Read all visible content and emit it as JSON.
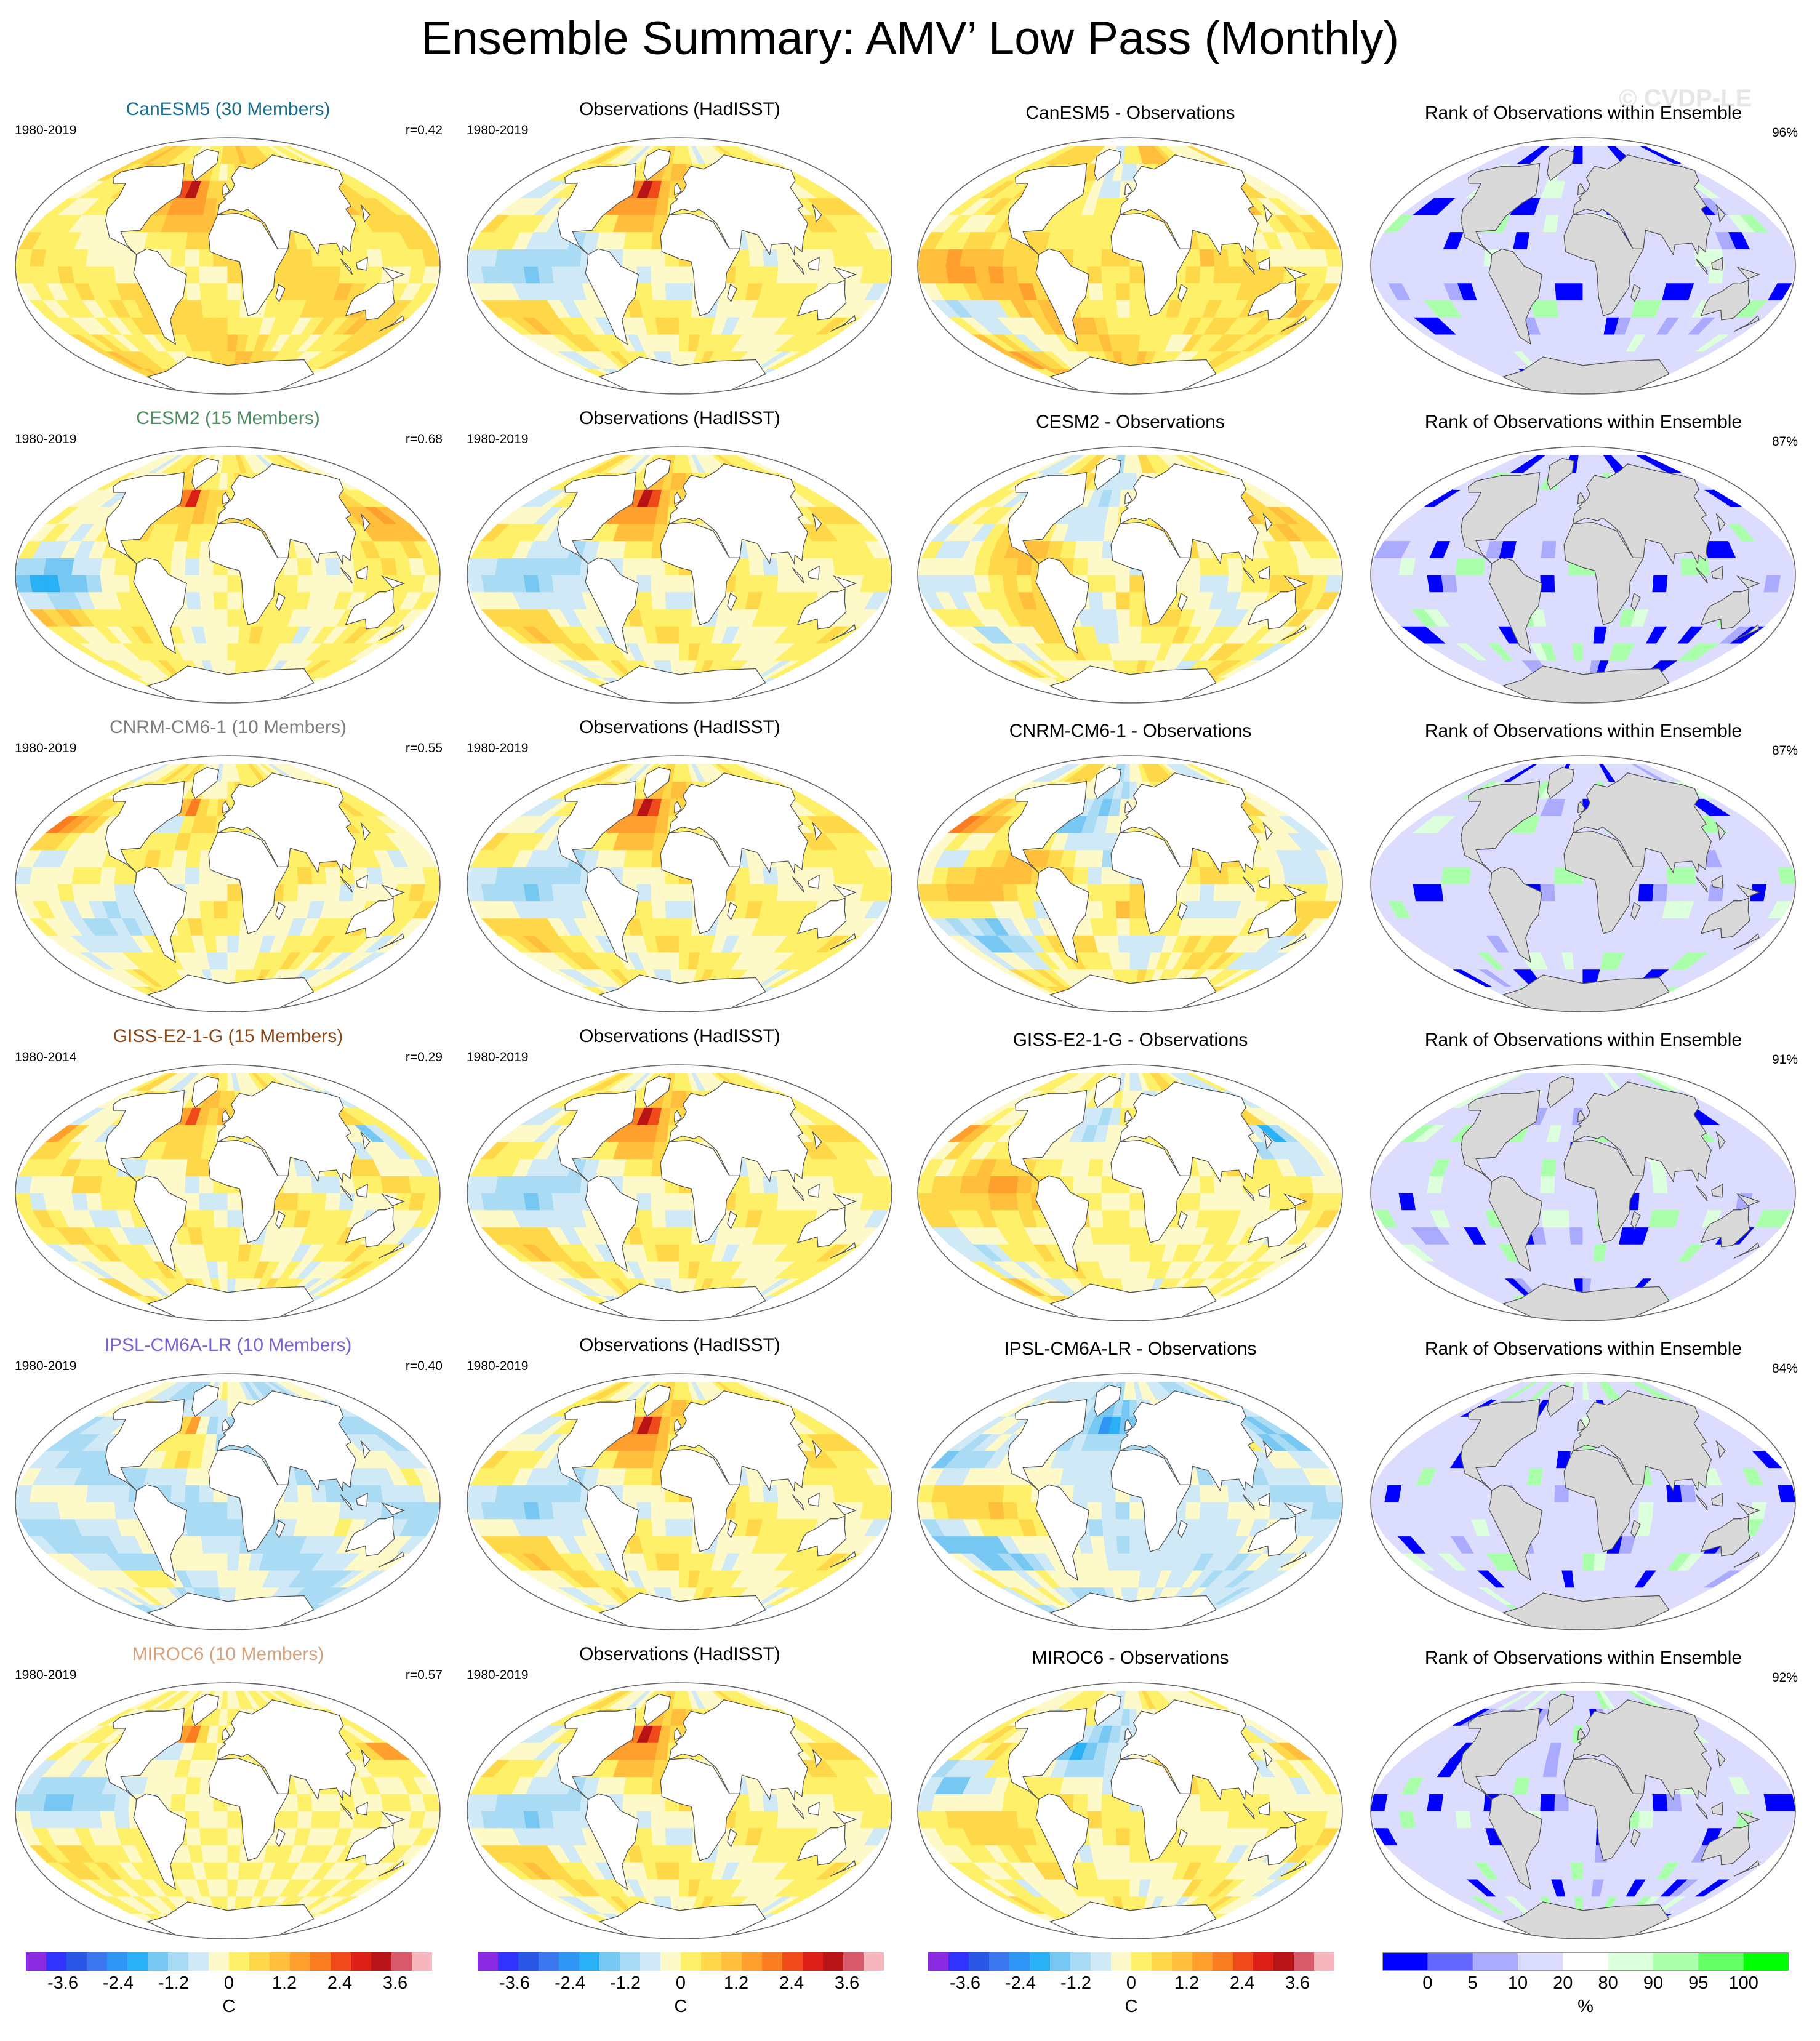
{
  "figure": {
    "title": "Ensemble Summary: AMV’ Low Pass (Monthly)",
    "watermark": "© CVDP-LE"
  },
  "chart_data": {
    "type": "heatmap",
    "projection": "global ocean maps, Robinson-like projection",
    "rows": [
      {
        "model": "CanESM5",
        "model_title": "CanESM5 (30 Members)",
        "model_color": "#1a6f8e",
        "model_period": "1980-2019",
        "r": "r=0.42",
        "obs_title": "Observations (HadISST)",
        "obs_period": "1980-2019",
        "diff_title": "CanESM5 - Observations",
        "rank_title": "Rank of Observations within Ensemble",
        "rank_pct": "96%"
      },
      {
        "model": "CESM2",
        "model_title": "CESM2 (15 Members)",
        "model_color": "#4e8e63",
        "model_period": "1980-2019",
        "r": "r=0.68",
        "obs_title": "Observations (HadISST)",
        "obs_period": "1980-2019",
        "diff_title": "CESM2 - Observations",
        "rank_title": "Rank of Observations within Ensemble",
        "rank_pct": "87%"
      },
      {
        "model": "CNRM-CM6-1",
        "model_title": "CNRM-CM6-1 (10 Members)",
        "model_color": "#7d7d7d",
        "model_period": "1980-2019",
        "r": "r=0.55",
        "obs_title": "Observations (HadISST)",
        "obs_period": "1980-2019",
        "diff_title": "CNRM-CM6-1 - Observations",
        "rank_title": "Rank of Observations within Ensemble",
        "rank_pct": "87%"
      },
      {
        "model": "GISS-E2-1-G",
        "model_title": "GISS-E2-1-G (15 Members)",
        "model_color": "#8a4a1c",
        "model_period": "1980-2014",
        "r": "r=0.29",
        "obs_title": "Observations (HadISST)",
        "obs_period": "1980-2019",
        "diff_title": "GISS-E2-1-G - Observations",
        "rank_title": "Rank of Observations within Ensemble",
        "rank_pct": "91%"
      },
      {
        "model": "IPSL-CM6A-LR",
        "model_title": "IPSL-CM6A-LR (10 Members)",
        "model_color": "#7b62cf",
        "model_period": "1980-2019",
        "r": "r=0.40",
        "obs_title": "Observations (HadISST)",
        "obs_period": "1980-2019",
        "diff_title": "IPSL-CM6A-LR - Observations",
        "rank_title": "Rank of Observations within Ensemble",
        "rank_pct": "84%"
      },
      {
        "model": "MIROC6",
        "model_title": "MIROC6 (10 Members)",
        "model_color": "#d4a37e",
        "model_period": "1980-2019",
        "r": "r=0.57",
        "obs_title": "Observations (HadISST)",
        "obs_period": "1980-2019",
        "diff_title": "MIROC6 - Observations",
        "rank_title": "Rank of Observations within Ensemble",
        "rank_pct": "92%"
      }
    ],
    "anomaly_colorbar": {
      "unit": "C",
      "tick_labels": [
        "-3.6",
        "-2.4",
        "-1.2",
        "0",
        "1.2",
        "2.4",
        "3.6"
      ],
      "tick_values": [
        -3.6,
        -2.4,
        -1.2,
        0,
        1.2,
        2.4,
        3.6
      ],
      "range": [
        -4.4,
        4.4
      ],
      "colors": [
        "#8a2be2",
        "#3232ff",
        "#2a56e6",
        "#3b78f0",
        "#2f96f5",
        "#29b0f5",
        "#76c8f2",
        "#a9dcf4",
        "#cfe9f7",
        "#fef9c8",
        "#fff06a",
        "#ffd84a",
        "#ffbf3c",
        "#ffa02e",
        "#fb7d22",
        "#f04a1a",
        "#db1f16",
        "#b81316",
        "#d85a6a",
        "#f6b6be"
      ]
    },
    "rank_colorbar": {
      "unit": "%",
      "tick_labels": [
        "0",
        "5",
        "10",
        "20",
        "80",
        "90",
        "95",
        "100"
      ],
      "tick_values": [
        0,
        5,
        10,
        20,
        80,
        90,
        95,
        100
      ],
      "colors": [
        "#0000ff",
        "#6464ff",
        "#aaaaff",
        "#dcdcff",
        "#ffffff",
        "#dcffdc",
        "#aaffaa",
        "#64ff64",
        "#00ff00"
      ]
    }
  }
}
